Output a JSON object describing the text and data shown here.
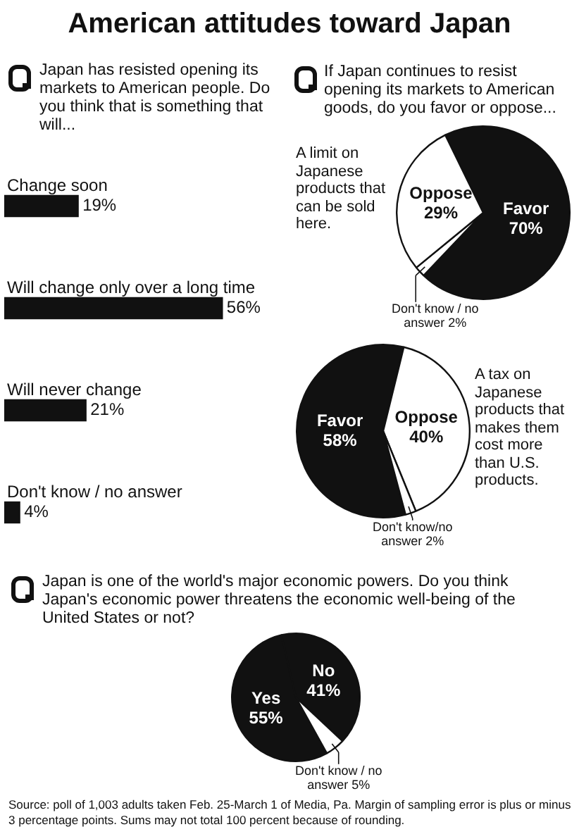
{
  "chart_data": [
    {
      "type": "bar",
      "orientation": "horizontal",
      "title": "American attitudes toward Japan",
      "subtitle": "Japan has resisted opening its markets to American people. Do you think that is something that will...",
      "categories": [
        "Change soon",
        "Will change only over a long time",
        "Will never change",
        "Don't know / no answer"
      ],
      "values": [
        19,
        56,
        21,
        4
      ],
      "value_labels": [
        "19%",
        "56%",
        "21%",
        "4%"
      ],
      "color": "#111111",
      "tick_labels": false
    },
    {
      "type": "pie",
      "subtitle": "If Japan continues to resist opening its markets to American goods, do you favor or oppose...",
      "annotations": [
        "A limit on Japanese products that can be sold here."
      ],
      "categories": [
        "Favor",
        "Don't know / no answer",
        "Oppose"
      ],
      "values": [
        70,
        2,
        29
      ],
      "value_labels": [
        "70%",
        "2%",
        "29%"
      ],
      "colors": [
        "#111111",
        "#ffffff",
        "#ffffff"
      ]
    },
    {
      "type": "pie",
      "annotations": [
        "A tax on Japanese products that makes them cost more than U.S. products."
      ],
      "categories": [
        "Favor",
        "Oppose",
        "Don't know/no answer"
      ],
      "values": [
        58,
        40,
        2
      ],
      "value_labels": [
        "58%",
        "40%",
        "2%"
      ],
      "colors": [
        "#111111",
        "#ffffff",
        "#ffffff"
      ]
    },
    {
      "type": "pie",
      "subtitle": "Japan is one of the world's major economic powers. Do you think Japan's economic power threatens the economic well-being of the United States or not?",
      "annotations": [
        "Source: poll of 1,003 adults taken Feb. 25-March 1 of Media, Pa. Margin of sampling error is plus or minus 3 percentage points. Sums may not total 100 percent because of rounding."
      ],
      "categories": [
        "Yes",
        "No",
        "Don't know / no answer"
      ],
      "values": [
        55,
        41,
        5
      ],
      "value_labels": [
        "55%",
        "41%",
        "5%"
      ],
      "colors": [
        "#111111",
        "#111111",
        "#ffffff"
      ]
    }
  ]
}
